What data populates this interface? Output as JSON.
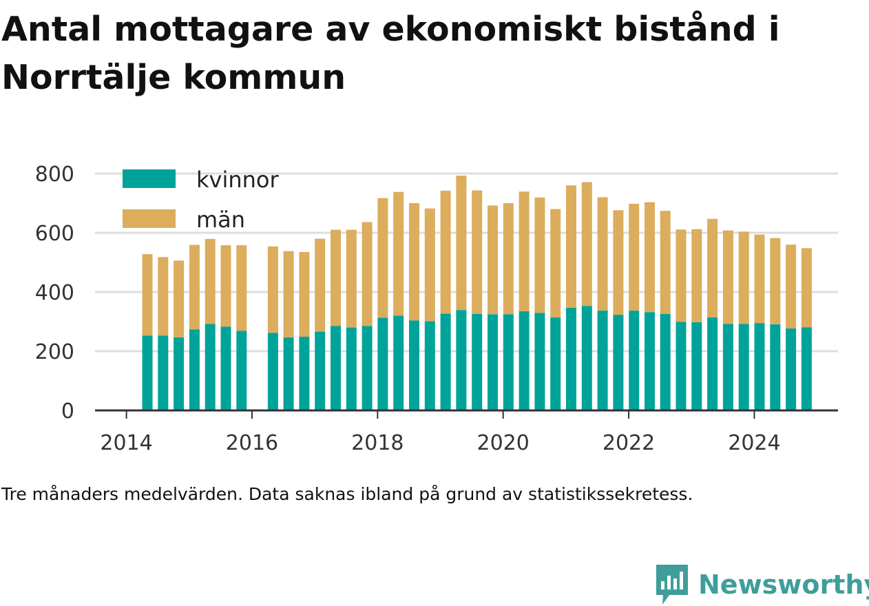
{
  "title": "Antal mottagare av ekonomiskt bistånd i Norrtälje kommun",
  "caption": "Tre månaders medelvärden. Data saknas ibland på grund av statistikssekretess.",
  "brand": {
    "name": "Newsworthy",
    "icon": "newsworthy-chat-bars-icon"
  },
  "colors": {
    "kvinnor": "#00a39a",
    "man": "#dbad5c",
    "grid": "#dddddd",
    "axis": "#333333",
    "brand": "#3f9e9a"
  },
  "chart_data": {
    "type": "bar",
    "stacked": true,
    "title": "Antal mottagare av ekonomiskt bistånd i Norrtälje kommun",
    "xlabel": "",
    "ylabel": "",
    "ylim": [
      0,
      800
    ],
    "yticks": [
      0,
      200,
      400,
      600,
      800
    ],
    "xlim": [
      "2013-07",
      "2025-05"
    ],
    "xticks": [
      "2014",
      "2016",
      "2018",
      "2020",
      "2022",
      "2024"
    ],
    "grid": true,
    "legend_position": "top-left",
    "x": [
      "2014-05",
      "2014-08",
      "2014-11",
      "2015-02",
      "2015-05",
      "2015-08",
      "2015-11",
      "2016-05",
      "2016-08",
      "2016-11",
      "2017-02",
      "2017-05",
      "2017-08",
      "2017-11",
      "2018-02",
      "2018-05",
      "2018-08",
      "2018-11",
      "2019-02",
      "2019-05",
      "2019-08",
      "2019-11",
      "2020-02",
      "2020-05",
      "2020-08",
      "2020-11",
      "2021-02",
      "2021-05",
      "2021-08",
      "2021-11",
      "2022-02",
      "2022-05",
      "2022-08",
      "2022-11",
      "2023-02",
      "2023-05",
      "2023-08",
      "2023-11",
      "2024-02",
      "2024-05",
      "2024-08",
      "2024-11"
    ],
    "series": [
      {
        "name": "kvinnor",
        "color": "#00a39a",
        "values": [
          253,
          253,
          247,
          274,
          292,
          283,
          269,
          262,
          247,
          249,
          266,
          285,
          280,
          285,
          313,
          320,
          304,
          301,
          327,
          339,
          326,
          325,
          325,
          335,
          329,
          314,
          347,
          353,
          337,
          323,
          337,
          332,
          326,
          299,
          298,
          314,
          292,
          292,
          295,
          291,
          277,
          281
        ]
      },
      {
        "name": "män",
        "color": "#dbad5c",
        "values": [
          275,
          265,
          259,
          285,
          287,
          275,
          289,
          292,
          291,
          286,
          314,
          325,
          330,
          351,
          404,
          418,
          396,
          381,
          415,
          454,
          417,
          367,
          375,
          404,
          390,
          366,
          413,
          418,
          383,
          353,
          361,
          371,
          348,
          312,
          314,
          333,
          316,
          312,
          299,
          291,
          283,
          267
        ]
      }
    ]
  }
}
